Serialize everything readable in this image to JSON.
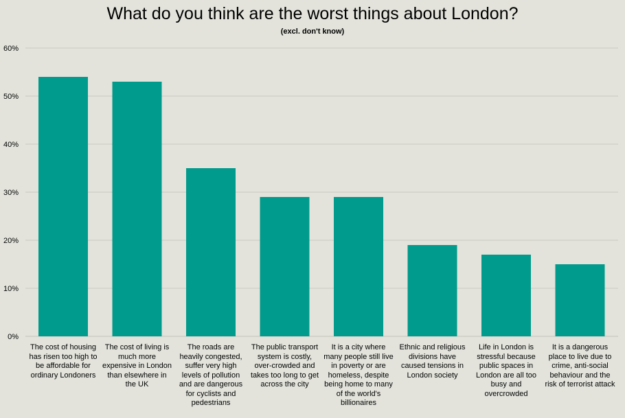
{
  "colors": {
    "bar": "#009b8c",
    "grid": "#c8c8c0",
    "background": "#e3e3dc"
  },
  "chart_data": {
    "type": "bar",
    "title": "What do you think are the worst things about London?",
    "subtitle": "(excl. don't know)",
    "xlabel": "",
    "ylabel": "",
    "ylim": [
      0,
      60
    ],
    "grid": true,
    "y_ticks": [
      "0%",
      "10%",
      "20%",
      "30%",
      "40%",
      "50%",
      "60%"
    ],
    "categories": [
      "The cost of housing has risen too high to be affordable for ordinary Londoners",
      "The cost of living is much more expensive in London than elsewhere in the UK",
      "The roads are heavily congested, suffer very high levels of pollution and are dangerous for cyclists and pedestrians",
      "The public transport system is costly, over-crowded and takes too long to get across the city",
      "It is a city where many people still live in poverty or are homeless, despite being home to many of the world's billionaires",
      "Ethnic and religious divisions have caused tensions in London society",
      "Life in London is stressful because public spaces in London are all too busy and overcrowded",
      "It is a dangerous place to live due to crime, anti-social behaviour and the risk of terrorist attack"
    ],
    "values": [
      54,
      53,
      35,
      29,
      29,
      19,
      17,
      15
    ]
  }
}
